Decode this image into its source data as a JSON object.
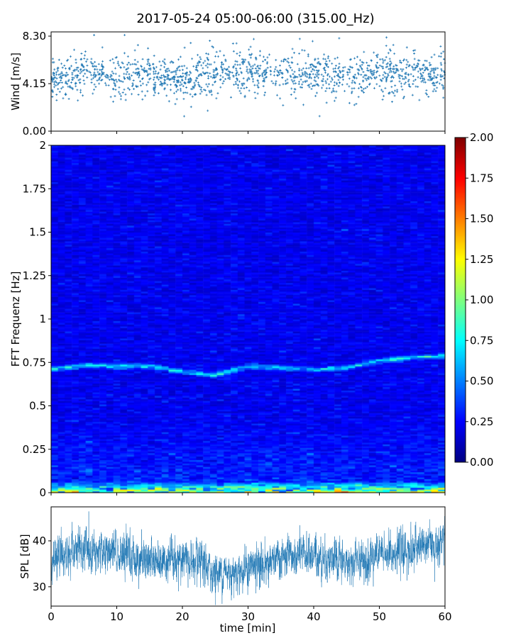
{
  "title": "2017-05-24 05:00-06:00 (315.00_Hz)",
  "chart_data": [
    {
      "type": "scatter",
      "name": "wind",
      "ylabel": "Wind [m/s]",
      "ylim": [
        0,
        8.67
      ],
      "yticks": [
        "0.00",
        "4.15",
        "8.30"
      ],
      "ytick_values": [
        0,
        4.15,
        8.3
      ],
      "x_minutes": [
        0,
        5,
        10,
        15,
        20,
        25,
        30,
        35,
        40,
        45,
        50,
        55,
        60
      ],
      "mean_wind": [
        4.5,
        5.0,
        4.6,
        4.8,
        4.3,
        5.0,
        5.3,
        4.8,
        5.0,
        4.6,
        5.0,
        4.8,
        4.8
      ],
      "spread": 0.9,
      "color": "#1f77b4"
    },
    {
      "type": "heatmap",
      "name": "spectrogram",
      "ylabel": "FFT Frequenz [Hz]",
      "ylim": [
        0,
        2
      ],
      "yticks": [
        "0",
        "0.25",
        "0.5",
        "0.75",
        "1",
        "1.25",
        "1.5",
        "1.75",
        "2"
      ],
      "ytick_values": [
        0,
        0.25,
        0.5,
        0.75,
        1,
        1.25,
        1.5,
        1.75,
        2
      ],
      "x_minutes": [
        0,
        5,
        10,
        15,
        20,
        25,
        30,
        35,
        40,
        45,
        50,
        55,
        60
      ],
      "ridge_frequency_hz": [
        0.71,
        0.735,
        0.73,
        0.73,
        0.7,
        0.68,
        0.73,
        0.72,
        0.71,
        0.72,
        0.76,
        0.78,
        0.79
      ],
      "colormap": "jet",
      "colorbar": {
        "range": [
          0,
          2
        ],
        "ticks": [
          "0.00",
          "0.25",
          "0.50",
          "0.75",
          "1.00",
          "1.25",
          "1.50",
          "1.75",
          "2.00"
        ],
        "tick_values": [
          0,
          0.25,
          0.5,
          0.75,
          1,
          1.25,
          1.5,
          1.75,
          2
        ]
      }
    },
    {
      "type": "line",
      "name": "spl",
      "ylabel": "SPL [dB]",
      "xlabel": "time [min]",
      "xlim": [
        0,
        60
      ],
      "xticks": [
        "0",
        "10",
        "20",
        "30",
        "40",
        "50",
        "60"
      ],
      "xtick_values": [
        0,
        10,
        20,
        30,
        40,
        50,
        60
      ],
      "ylim": [
        25.8,
        47.4
      ],
      "yticks": [
        "30",
        "40"
      ],
      "ytick_values": [
        30,
        40
      ],
      "x_minutes": [
        0,
        5,
        10,
        15,
        20,
        25,
        30,
        35,
        40,
        45,
        50,
        55,
        60
      ],
      "mean_spl": [
        36,
        38,
        37,
        36,
        36,
        33,
        34,
        36,
        37,
        35,
        37,
        38,
        40
      ],
      "color": "#1f77b4"
    }
  ]
}
